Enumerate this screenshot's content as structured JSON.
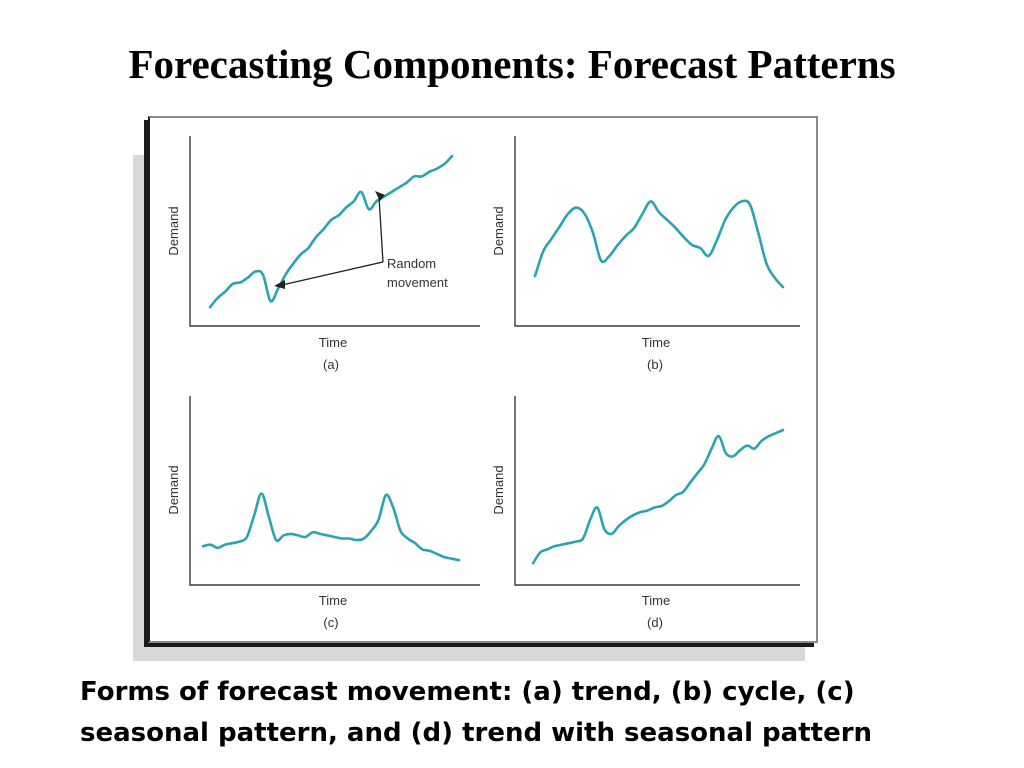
{
  "page": {
    "title": "Forecasting Components: Forecast Patterns",
    "caption_line1": "Forms of forecast movement: (a) trend, (b) cycle, (c)",
    "caption_line2": "seasonal pattern, and (d) trend with seasonal pattern"
  },
  "colors": {
    "series": "#2aa3b2",
    "axis": "#3a3a3a"
  },
  "chart_data": [
    {
      "type": "line",
      "panel": "(a)",
      "xlabel": "Time",
      "ylabel": "Demand",
      "annotation": "Random movement",
      "x": [
        0,
        1,
        2,
        3,
        4,
        5,
        6,
        7,
        8,
        9,
        10,
        11,
        12,
        13,
        14,
        15,
        16,
        17,
        18,
        19,
        20,
        21,
        22,
        23,
        24,
        25,
        26,
        27,
        28,
        29,
        30,
        31,
        32
      ],
      "y": [
        0.12,
        0.18,
        0.22,
        0.27,
        0.28,
        0.31,
        0.35,
        0.33,
        0.16,
        0.24,
        0.33,
        0.4,
        0.46,
        0.5,
        0.57,
        0.62,
        0.68,
        0.71,
        0.76,
        0.8,
        0.86,
        0.75,
        0.8,
        0.83,
        0.86,
        0.89,
        0.92,
        0.96,
        0.96,
        0.99,
        1.01,
        1.04,
        1.09
      ]
    },
    {
      "type": "line",
      "panel": "(b)",
      "xlabel": "Time",
      "ylabel": "Demand",
      "x": [
        0,
        1,
        2,
        3,
        4,
        5,
        6,
        7,
        8,
        9,
        10,
        11,
        12,
        13,
        14,
        15,
        16,
        17,
        18,
        19,
        20,
        21,
        22,
        23,
        24,
        25,
        26,
        27,
        28,
        29,
        30
      ],
      "y": [
        0.32,
        0.48,
        0.56,
        0.64,
        0.72,
        0.76,
        0.72,
        0.6,
        0.42,
        0.45,
        0.52,
        0.58,
        0.63,
        0.72,
        0.8,
        0.73,
        0.68,
        0.63,
        0.57,
        0.52,
        0.5,
        0.45,
        0.55,
        0.68,
        0.76,
        0.8,
        0.78,
        0.6,
        0.4,
        0.31,
        0.25
      ]
    },
    {
      "type": "line",
      "panel": "(c)",
      "xlabel": "Time",
      "ylabel": "Demand",
      "x": [
        0,
        1,
        2,
        3,
        4,
        5,
        6,
        7,
        8,
        9,
        10,
        11,
        12,
        13,
        14,
        15,
        16,
        17,
        18,
        19,
        20,
        21,
        22,
        23,
        24,
        25,
        26,
        27,
        28,
        29,
        30,
        31,
        32,
        33,
        34,
        35
      ],
      "y": [
        0.25,
        0.26,
        0.24,
        0.26,
        0.27,
        0.28,
        0.31,
        0.45,
        0.59,
        0.44,
        0.29,
        0.32,
        0.33,
        0.32,
        0.31,
        0.34,
        0.33,
        0.32,
        0.31,
        0.3,
        0.3,
        0.29,
        0.3,
        0.35,
        0.42,
        0.58,
        0.5,
        0.35,
        0.3,
        0.27,
        0.23,
        0.22,
        0.2,
        0.18,
        0.17,
        0.16
      ]
    },
    {
      "type": "line",
      "panel": "(d)",
      "xlabel": "Time",
      "ylabel": "Demand",
      "x": [
        0,
        1,
        2,
        3,
        4,
        5,
        6,
        7,
        8,
        9,
        10,
        11,
        12,
        13,
        14,
        15,
        16,
        17,
        18,
        19,
        20,
        21,
        22,
        23,
        24,
        25,
        26,
        27,
        28,
        29,
        30,
        31,
        32,
        33,
        34,
        35
      ],
      "y": [
        0.14,
        0.21,
        0.23,
        0.25,
        0.26,
        0.27,
        0.28,
        0.3,
        0.42,
        0.5,
        0.36,
        0.33,
        0.38,
        0.42,
        0.45,
        0.47,
        0.48,
        0.5,
        0.51,
        0.54,
        0.58,
        0.6,
        0.66,
        0.72,
        0.78,
        0.88,
        0.96,
        0.85,
        0.83,
        0.87,
        0.9,
        0.88,
        0.93,
        0.96,
        0.98,
        1.0
      ]
    }
  ]
}
